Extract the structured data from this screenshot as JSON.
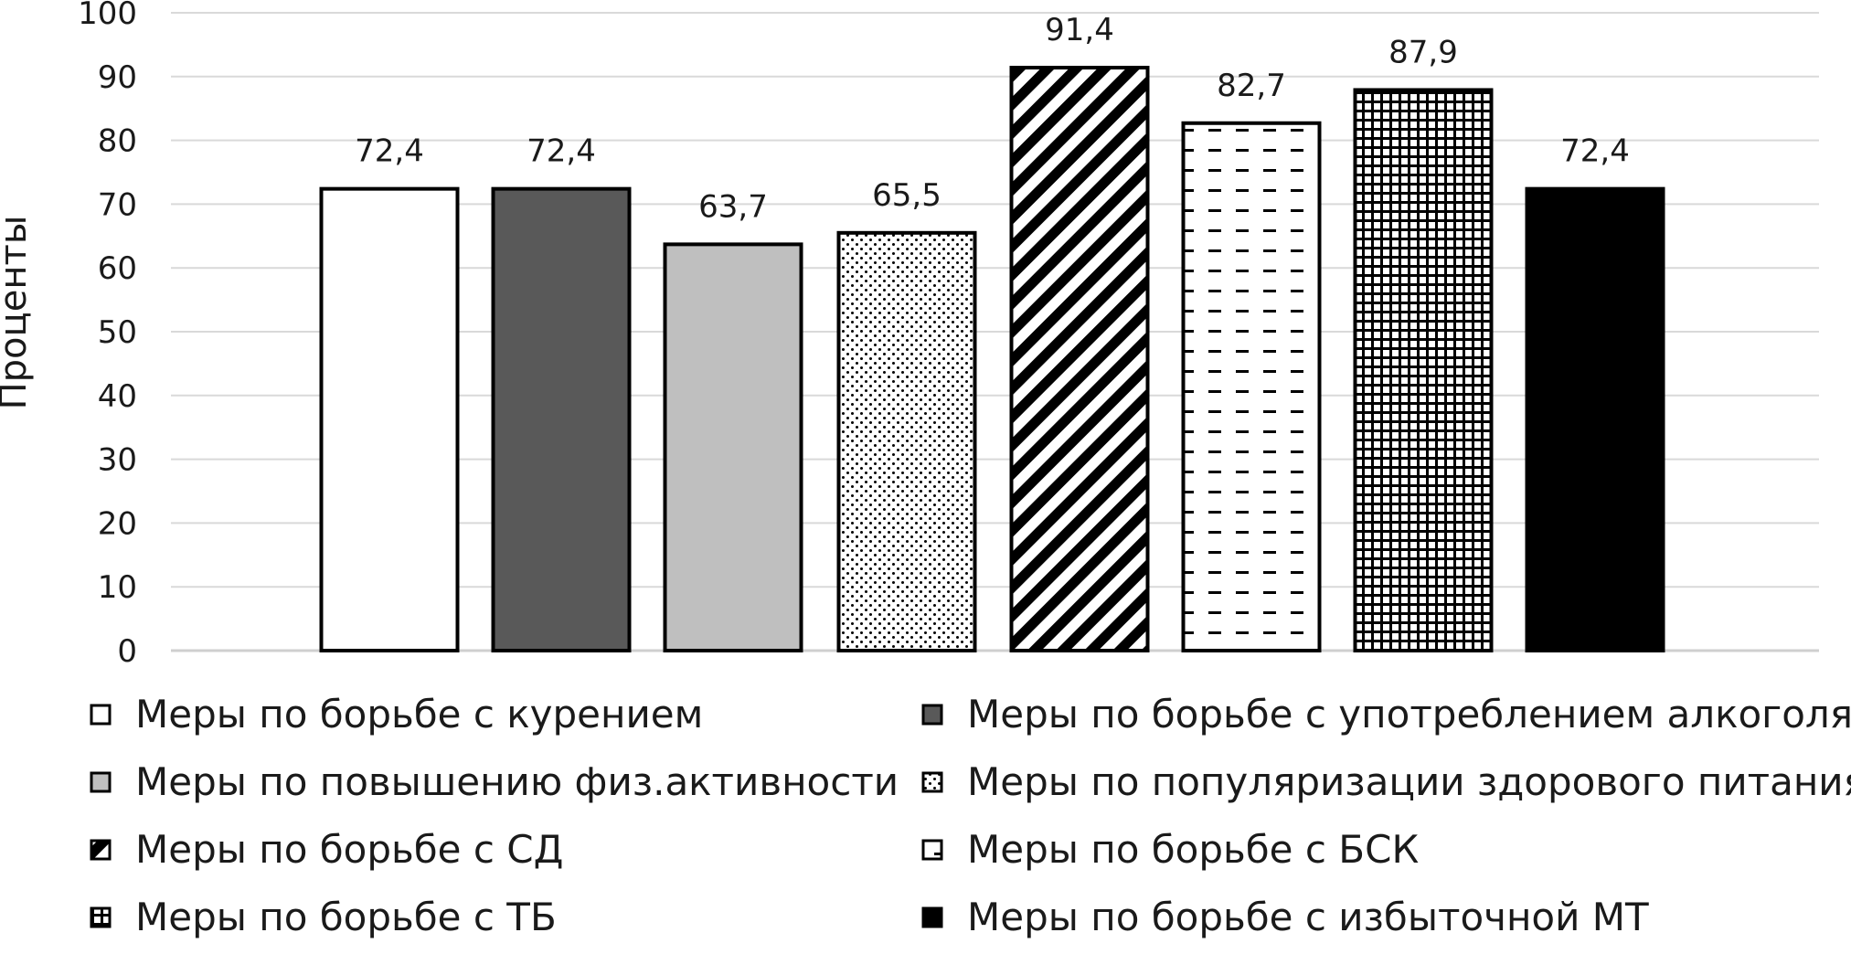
{
  "chart_data": {
    "type": "bar",
    "title": "",
    "xlabel": "",
    "ylabel": "Проценты",
    "ylim": [
      0,
      100
    ],
    "yticks": [
      0,
      10,
      20,
      30,
      40,
      50,
      60,
      70,
      80,
      90,
      100
    ],
    "grid": true,
    "legend_position": "bottom",
    "categories": [
      "Меры по борьбе с курением",
      "Меры по борьбе с употреблением алкоголя",
      "Меры по повышению физ.активности",
      "Меры по популяризации здорового питания",
      "Меры по борьбе с СД",
      "Меры по борьбе с БСК",
      "Меры по борьбе с ТБ",
      "Меры по борьбе с избыточной МТ"
    ],
    "values": [
      72.4,
      72.4,
      63.7,
      65.5,
      91.4,
      82.7,
      87.9,
      72.4
    ],
    "data_labels": [
      "72,4",
      "72,4",
      "63,7",
      "65,5",
      "91,4",
      "82,7",
      "87,9",
      "72,4"
    ],
    "fills": [
      "white",
      "dark-gray",
      "light-gray",
      "dots",
      "diagonal-stripes",
      "dashes",
      "grid",
      "black"
    ]
  }
}
